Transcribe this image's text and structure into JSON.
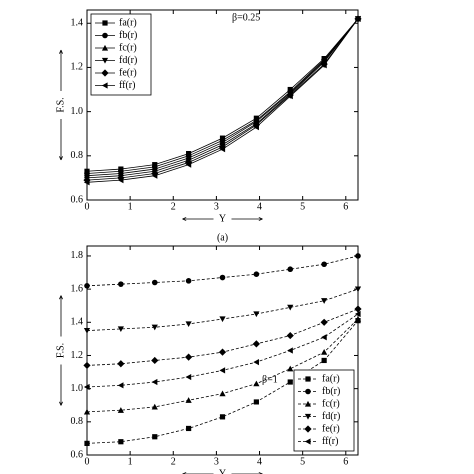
{
  "chart_data": [
    {
      "type": "line",
      "annotation": "β=0.25",
      "ylabel": "F.S.",
      "xlabel": "Y",
      "caption": "(a)",
      "x": [
        0,
        0.785,
        1.571,
        2.356,
        3.142,
        3.927,
        4.712,
        5.498,
        6.283
      ],
      "xlim": [
        0,
        6.283
      ],
      "xticks": [
        0,
        1,
        2,
        3,
        4,
        5,
        6
      ],
      "ylim": [
        0.6,
        1.46
      ],
      "yticks": [
        0.6,
        0.8,
        {
          "value": 1,
          "label": "1.0"
        },
        1.2,
        1.4
      ],
      "legend": "upper left",
      "line_style": "solid",
      "series": [
        {
          "name": "fa(r)",
          "color": "#000000",
          "marker": "square",
          "values": [
            0.73,
            0.74,
            0.76,
            0.81,
            0.88,
            0.97,
            1.1,
            1.24,
            1.42
          ]
        },
        {
          "name": "fb(r)",
          "color": "#000000",
          "marker": "circle",
          "values": [
            0.72,
            0.73,
            0.75,
            0.8,
            0.87,
            0.96,
            1.09,
            1.235,
            1.42
          ]
        },
        {
          "name": "fc(r)",
          "color": "#000000",
          "marker": "triangle-up",
          "values": [
            0.71,
            0.72,
            0.74,
            0.79,
            0.86,
            0.955,
            1.085,
            1.23,
            1.42
          ]
        },
        {
          "name": "fd(r)",
          "color": "#000000",
          "marker": "triangle-down",
          "values": [
            0.7,
            0.71,
            0.73,
            0.78,
            0.85,
            0.945,
            1.08,
            1.225,
            1.42
          ]
        },
        {
          "name": "fe(r)",
          "color": "#000000",
          "marker": "diamond",
          "values": [
            0.69,
            0.7,
            0.72,
            0.77,
            0.84,
            0.94,
            1.075,
            1.215,
            1.42
          ]
        },
        {
          "name": "ff(r)",
          "color": "#000000",
          "marker": "triangle-left",
          "values": [
            0.68,
            0.69,
            0.71,
            0.76,
            0.83,
            0.93,
            1.07,
            1.21,
            1.42
          ]
        }
      ]
    },
    {
      "type": "line",
      "annotation": "β=1",
      "ylabel": "F.S.",
      "xlabel": "Y",
      "x": [
        0,
        0.785,
        1.571,
        2.356,
        3.142,
        3.927,
        4.712,
        5.498,
        6.283
      ],
      "xlim": [
        0,
        6.283
      ],
      "xticks": [
        0,
        1,
        2,
        3,
        4,
        5,
        6
      ],
      "ylim": [
        0.6,
        1.86
      ],
      "yticks": [
        0.6,
        0.8,
        {
          "value": 1,
          "label": "1.0"
        },
        1.2,
        1.4,
        1.6,
        1.8
      ],
      "legend": "lower right",
      "line_style": "dashed",
      "series": [
        {
          "name": "fa(r)",
          "color": "#000000",
          "marker": "square",
          "values": [
            0.67,
            0.68,
            0.71,
            0.76,
            0.83,
            0.92,
            1.04,
            1.17,
            1.41
          ]
        },
        {
          "name": "fb(r)",
          "color": "#000000",
          "marker": "circle",
          "values": [
            1.62,
            1.63,
            1.64,
            1.65,
            1.67,
            1.69,
            1.72,
            1.75,
            1.8
          ]
        },
        {
          "name": "fc(r)",
          "color": "#000000",
          "marker": "triangle-up",
          "values": [
            0.86,
            0.87,
            0.89,
            0.93,
            0.97,
            1.03,
            1.12,
            1.22,
            1.42
          ]
        },
        {
          "name": "fd(r)",
          "color": "#000000",
          "marker": "triangle-down",
          "values": [
            1.35,
            1.36,
            1.37,
            1.39,
            1.42,
            1.45,
            1.49,
            1.53,
            1.6
          ]
        },
        {
          "name": "fe(r)",
          "color": "#000000",
          "marker": "diamond",
          "values": [
            1.14,
            1.15,
            1.17,
            1.19,
            1.22,
            1.27,
            1.32,
            1.4,
            1.48
          ]
        },
        {
          "name": "ff(r)",
          "color": "#000000",
          "marker": "triangle-left",
          "values": [
            1.01,
            1.02,
            1.04,
            1.07,
            1.11,
            1.16,
            1.23,
            1.31,
            1.45
          ]
        }
      ]
    }
  ]
}
